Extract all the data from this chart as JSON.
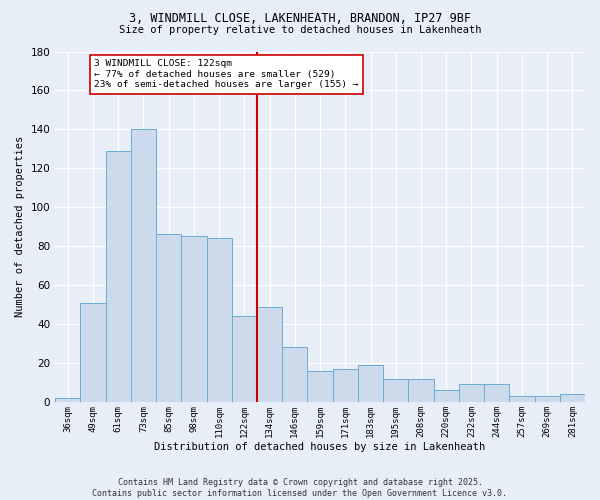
{
  "title_line1": "3, WINDMILL CLOSE, LAKENHEATH, BRANDON, IP27 9BF",
  "title_line2": "Size of property relative to detached houses in Lakenheath",
  "xlabel": "Distribution of detached houses by size in Lakenheath",
  "ylabel": "Number of detached properties",
  "categories": [
    "36sqm",
    "49sqm",
    "61sqm",
    "73sqm",
    "85sqm",
    "98sqm",
    "110sqm",
    "122sqm",
    "134sqm",
    "146sqm",
    "159sqm",
    "171sqm",
    "183sqm",
    "195sqm",
    "208sqm",
    "220sqm",
    "232sqm",
    "244sqm",
    "257sqm",
    "269sqm",
    "281sqm"
  ],
  "values": [
    2,
    51,
    129,
    140,
    86,
    85,
    84,
    44,
    49,
    28,
    16,
    17,
    19,
    12,
    12,
    6,
    9,
    9,
    3,
    3,
    4
  ],
  "bar_color": "#ccdaeb",
  "bar_edge_color": "#6aadd5",
  "vline_color": "#cc0000",
  "annotation_text": "3 WINDMILL CLOSE: 122sqm\n← 77% of detached houses are smaller (529)\n23% of semi-detached houses are larger (155) →",
  "annotation_box_color": "#ffffff",
  "annotation_box_edge": "#cc0000",
  "ylim": [
    0,
    180
  ],
  "yticks": [
    0,
    20,
    40,
    60,
    80,
    100,
    120,
    140,
    160,
    180
  ],
  "footer_text": "Contains HM Land Registry data © Crown copyright and database right 2025.\nContains public sector information licensed under the Open Government Licence v3.0.",
  "bg_color": "#e8eef7",
  "grid_color": "#ffffff"
}
